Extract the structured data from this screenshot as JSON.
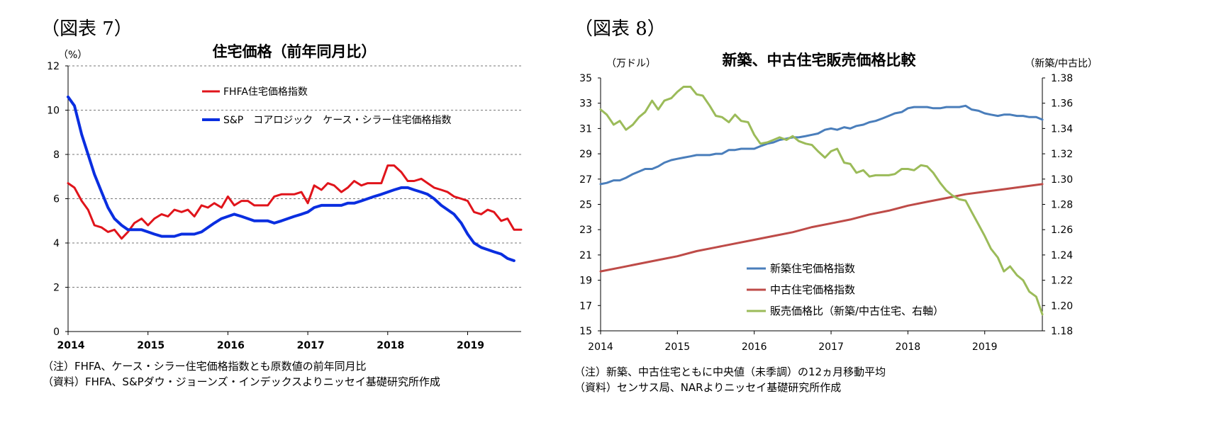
{
  "left_panel": {
    "figure_label": "（図表 7）",
    "notes": [
      "（注）FHFA、ケース・シラー住宅価格指数とも原数値の前年同月比",
      "（資料）FHFA、S&Pダウ・ジョーンズ・インデックスよりニッセイ基礎研究所作成"
    ]
  },
  "right_panel": {
    "figure_label": "（図表 8）",
    "notes": [
      "（注）新築、中古住宅ともに中央値（未季調）の12ヵ月移動平均",
      "（資料）センサス局、NARよりニッセイ基礎研究所作成"
    ]
  },
  "chart_data": [
    {
      "type": "line",
      "title": "住宅価格（前年同月比）",
      "ylabel": "（%）",
      "xlabel": "",
      "x_range": [
        2014,
        2019.67
      ],
      "ylim": [
        0,
        12
      ],
      "yticks": [
        "0",
        "2",
        "4",
        "6",
        "8",
        "10",
        "12"
      ],
      "xticks": [
        "2014",
        "2015",
        "2016",
        "2017",
        "2018",
        "2019"
      ],
      "grid": "horizontal dashed",
      "legend_position": "top-center",
      "series": [
        {
          "name": "FHFA住宅価格指数",
          "color": "#e0141b",
          "x": [
            2014.0,
            2014.08,
            2014.17,
            2014.25,
            2014.33,
            2014.42,
            2014.5,
            2014.58,
            2014.67,
            2014.75,
            2014.83,
            2014.92,
            2015.0,
            2015.08,
            2015.17,
            2015.25,
            2015.33,
            2015.42,
            2015.5,
            2015.58,
            2015.67,
            2015.75,
            2015.83,
            2015.92,
            2016.0,
            2016.08,
            2016.17,
            2016.25,
            2016.33,
            2016.42,
            2016.5,
            2016.58,
            2016.67,
            2016.75,
            2016.83,
            2016.92,
            2017.0,
            2017.08,
            2017.17,
            2017.25,
            2017.33,
            2017.42,
            2017.5,
            2017.58,
            2017.67,
            2017.75,
            2017.83,
            2017.92,
            2018.0,
            2018.08,
            2018.17,
            2018.25,
            2018.33,
            2018.42,
            2018.5,
            2018.58,
            2018.67,
            2018.75,
            2018.83,
            2018.92,
            2019.0,
            2019.08,
            2019.17,
            2019.25,
            2019.33,
            2019.42,
            2019.5,
            2019.58,
            2019.67
          ],
          "values": [
            6.7,
            6.5,
            5.9,
            5.5,
            4.8,
            4.7,
            4.5,
            4.6,
            4.2,
            4.5,
            4.9,
            5.1,
            4.8,
            5.1,
            5.3,
            5.2,
            5.5,
            5.4,
            5.5,
            5.2,
            5.7,
            5.6,
            5.8,
            5.6,
            6.1,
            5.7,
            5.9,
            5.9,
            5.7,
            5.7,
            5.7,
            6.1,
            6.2,
            6.2,
            6.2,
            6.3,
            5.8,
            6.6,
            6.4,
            6.7,
            6.6,
            6.3,
            6.5,
            6.8,
            6.6,
            6.7,
            6.7,
            6.7,
            7.5,
            7.5,
            7.2,
            6.8,
            6.8,
            6.9,
            6.7,
            6.5,
            6.4,
            6.3,
            6.1,
            6.0,
            5.9,
            5.4,
            5.3,
            5.5,
            5.4,
            5.0,
            5.1,
            4.6,
            4.6
          ]
        },
        {
          "name": "S&P　コアロジック　ケース・シラー住宅価格指数",
          "color": "#0a2ee0",
          "x": [
            2014.0,
            2014.08,
            2014.17,
            2014.25,
            2014.33,
            2014.42,
            2014.5,
            2014.58,
            2014.67,
            2014.75,
            2014.83,
            2014.92,
            2015.0,
            2015.08,
            2015.17,
            2015.25,
            2015.33,
            2015.42,
            2015.5,
            2015.58,
            2015.67,
            2015.75,
            2015.83,
            2015.92,
            2016.0,
            2016.08,
            2016.17,
            2016.25,
            2016.33,
            2016.42,
            2016.5,
            2016.58,
            2016.67,
            2016.75,
            2016.83,
            2016.92,
            2017.0,
            2017.08,
            2017.17,
            2017.25,
            2017.33,
            2017.42,
            2017.5,
            2017.58,
            2017.67,
            2017.75,
            2017.83,
            2017.92,
            2018.0,
            2018.08,
            2018.17,
            2018.25,
            2018.33,
            2018.42,
            2018.5,
            2018.58,
            2018.67,
            2018.75,
            2018.83,
            2018.92,
            2019.0,
            2019.08,
            2019.17,
            2019.25,
            2019.33,
            2019.42,
            2019.5,
            2019.58
          ],
          "values": [
            10.6,
            10.2,
            8.9,
            8.0,
            7.1,
            6.3,
            5.6,
            5.1,
            4.8,
            4.6,
            4.6,
            4.6,
            4.5,
            4.4,
            4.3,
            4.3,
            4.3,
            4.4,
            4.4,
            4.4,
            4.5,
            4.7,
            4.9,
            5.1,
            5.2,
            5.3,
            5.2,
            5.1,
            5.0,
            5.0,
            5.0,
            4.9,
            5.0,
            5.1,
            5.2,
            5.3,
            5.4,
            5.6,
            5.7,
            5.7,
            5.7,
            5.7,
            5.8,
            5.8,
            5.9,
            6.0,
            6.1,
            6.2,
            6.3,
            6.4,
            6.5,
            6.5,
            6.4,
            6.3,
            6.2,
            6.0,
            5.7,
            5.5,
            5.3,
            4.9,
            4.4,
            4.0,
            3.8,
            3.7,
            3.6,
            3.5,
            3.3,
            3.2
          ]
        }
      ]
    },
    {
      "type": "line",
      "title": "新築、中古住宅販売価格比較",
      "ylabel": "（万ドル）",
      "y2label": "（新築/中古比）",
      "xlabel": "",
      "x_range": [
        2014,
        2019.75
      ],
      "ylim": [
        15,
        35
      ],
      "y2lim": [
        1.18,
        1.38
      ],
      "yticks": [
        "15",
        "17",
        "19",
        "21",
        "23",
        "25",
        "27",
        "29",
        "31",
        "33",
        "35"
      ],
      "y2ticks": [
        "1.18",
        "1.20",
        "1.22",
        "1.24",
        "1.26",
        "1.28",
        "1.30",
        "1.32",
        "1.34",
        "1.36",
        "1.38"
      ],
      "xticks": [
        "2014",
        "2015",
        "2016",
        "2017",
        "2018",
        "2019"
      ],
      "grid": "none",
      "legend_position": "bottom-center",
      "series": [
        {
          "name": "新築住宅価格指数",
          "color": "#4a7ebb",
          "axis": "left",
          "x": [
            2014.0,
            2014.08,
            2014.17,
            2014.25,
            2014.33,
            2014.42,
            2014.5,
            2014.58,
            2014.67,
            2014.75,
            2014.83,
            2014.92,
            2015.0,
            2015.08,
            2015.17,
            2015.25,
            2015.33,
            2015.42,
            2015.5,
            2015.58,
            2015.67,
            2015.75,
            2015.83,
            2015.92,
            2016.0,
            2016.08,
            2016.17,
            2016.25,
            2016.33,
            2016.42,
            2016.5,
            2016.58,
            2016.67,
            2016.75,
            2016.83,
            2016.92,
            2017.0,
            2017.08,
            2017.17,
            2017.25,
            2017.33,
            2017.42,
            2017.5,
            2017.58,
            2017.67,
            2017.75,
            2017.83,
            2017.92,
            2018.0,
            2018.08,
            2018.17,
            2018.25,
            2018.33,
            2018.42,
            2018.5,
            2018.58,
            2018.67,
            2018.75,
            2018.83,
            2018.92,
            2019.0,
            2019.08,
            2019.17,
            2019.25,
            2019.33,
            2019.42,
            2019.5,
            2019.58,
            2019.67,
            2019.75
          ],
          "values": [
            26.6,
            26.7,
            26.9,
            26.9,
            27.1,
            27.4,
            27.6,
            27.8,
            27.8,
            28.0,
            28.3,
            28.5,
            28.6,
            28.7,
            28.8,
            28.9,
            28.9,
            28.9,
            29.0,
            29.0,
            29.3,
            29.3,
            29.4,
            29.4,
            29.4,
            29.6,
            29.8,
            29.9,
            30.1,
            30.2,
            30.3,
            30.3,
            30.4,
            30.5,
            30.6,
            30.9,
            31.0,
            30.9,
            31.1,
            31.0,
            31.2,
            31.3,
            31.5,
            31.6,
            31.8,
            32.0,
            32.2,
            32.3,
            32.6,
            32.7,
            32.7,
            32.7,
            32.6,
            32.6,
            32.7,
            32.7,
            32.7,
            32.8,
            32.5,
            32.4,
            32.2,
            32.1,
            32.0,
            32.1,
            32.1,
            32.0,
            32.0,
            31.9,
            31.9,
            31.7
          ]
        },
        {
          "name": "中古住宅価格指数",
          "color": "#be4b48",
          "axis": "left",
          "x": [
            2014.0,
            2014.25,
            2014.5,
            2014.75,
            2015.0,
            2015.25,
            2015.5,
            2015.75,
            2016.0,
            2016.25,
            2016.5,
            2016.75,
            2017.0,
            2017.25,
            2017.5,
            2017.75,
            2018.0,
            2018.25,
            2018.5,
            2018.75,
            2019.0,
            2019.25,
            2019.5,
            2019.75
          ],
          "values": [
            19.7,
            20.0,
            20.3,
            20.6,
            20.9,
            21.3,
            21.6,
            21.9,
            22.2,
            22.5,
            22.8,
            23.2,
            23.5,
            23.8,
            24.2,
            24.5,
            24.9,
            25.2,
            25.5,
            25.8,
            26.0,
            26.2,
            26.4,
            26.6
          ]
        },
        {
          "name": "販売価格比（新築/中古住宅、右軸）",
          "color": "#9bbb59",
          "axis": "right",
          "x": [
            2014.0,
            2014.08,
            2014.17,
            2014.25,
            2014.33,
            2014.42,
            2014.5,
            2014.58,
            2014.67,
            2014.75,
            2014.83,
            2014.92,
            2015.0,
            2015.08,
            2015.17,
            2015.25,
            2015.33,
            2015.42,
            2015.5,
            2015.58,
            2015.67,
            2015.75,
            2015.83,
            2015.92,
            2016.0,
            2016.08,
            2016.17,
            2016.25,
            2016.33,
            2016.42,
            2016.5,
            2016.58,
            2016.67,
            2016.75,
            2016.83,
            2016.92,
            2017.0,
            2017.08,
            2017.17,
            2017.25,
            2017.33,
            2017.42,
            2017.5,
            2017.58,
            2017.67,
            2017.75,
            2017.83,
            2017.92,
            2018.0,
            2018.08,
            2018.17,
            2018.25,
            2018.33,
            2018.42,
            2018.5,
            2018.58,
            2018.67,
            2018.75,
            2018.83,
            2018.92,
            2019.0,
            2019.08,
            2019.17,
            2019.25,
            2019.33,
            2019.42,
            2019.5,
            2019.58,
            2019.67,
            2019.75
          ],
          "values": [
            1.355,
            1.351,
            1.343,
            1.346,
            1.339,
            1.343,
            1.349,
            1.353,
            1.362,
            1.355,
            1.362,
            1.364,
            1.369,
            1.373,
            1.373,
            1.367,
            1.366,
            1.358,
            1.35,
            1.349,
            1.345,
            1.351,
            1.346,
            1.345,
            1.335,
            1.328,
            1.329,
            1.331,
            1.333,
            1.331,
            1.334,
            1.33,
            1.328,
            1.327,
            1.322,
            1.317,
            1.322,
            1.324,
            1.313,
            1.312,
            1.305,
            1.307,
            1.302,
            1.303,
            1.303,
            1.303,
            1.304,
            1.308,
            1.308,
            1.307,
            1.311,
            1.31,
            1.305,
            1.297,
            1.291,
            1.287,
            1.284,
            1.283,
            1.274,
            1.264,
            1.255,
            1.245,
            1.238,
            1.227,
            1.231,
            1.224,
            1.22,
            1.211,
            1.207,
            1.193
          ]
        }
      ]
    }
  ]
}
